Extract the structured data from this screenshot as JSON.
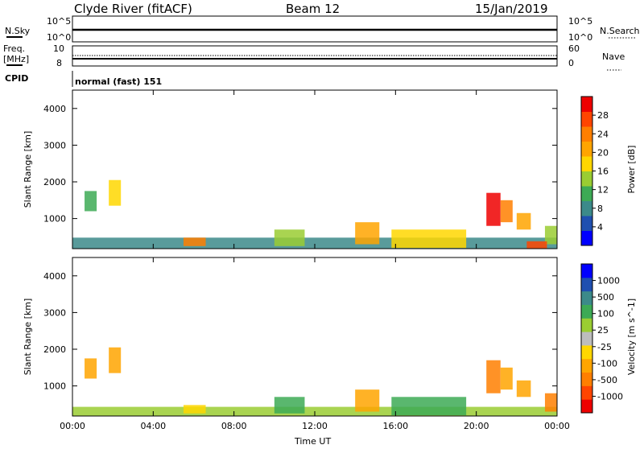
{
  "header": {
    "station": "Clyde River (fitACF)",
    "beam": "Beam 12",
    "date": "15/Jan/2019"
  },
  "side_labels": {
    "nsky": "N.Sky",
    "nsearch": "N.Search",
    "freq_top": "Freq.",
    "freq_unit": "[MHz]",
    "nave": "Nave",
    "cpid": "CPID"
  },
  "strip_ticks": {
    "nsky_top": "10^5",
    "nsky_bottom": "10^0",
    "nsearch_top": "10^5",
    "nsearch_bottom": "10^0",
    "freq_top": "10",
    "freq_bottom": "8",
    "nave_top": "60",
    "nave_bottom": "0"
  },
  "cpid_text": "normal (fast) 151",
  "chart_data": [
    {
      "type": "heatmap",
      "quantity": "Power",
      "ylabel": "Slant Range [km]",
      "colorbar_label": "Power [dB]",
      "ylim": [
        180,
        4500
      ],
      "yticks": [
        "1000",
        "2000",
        "3000",
        "4000"
      ],
      "colorbar_ticks": [
        "4",
        "8",
        "12",
        "16",
        "20",
        "24",
        "28"
      ],
      "colors": [
        "#0000ff",
        "#1f4fb0",
        "#3c8a8a",
        "#3daa55",
        "#9acd32",
        "#ffd700",
        "#ffa500",
        "#ff7f00",
        "#ff4500",
        "#ee0000"
      ],
      "patches": [
        {
          "t": [
            0.6,
            1.2
          ],
          "r": [
            1200,
            1750
          ],
          "level": 3
        },
        {
          "t": [
            1.8,
            2.4
          ],
          "r": [
            1350,
            2050
          ],
          "level": 5
        },
        {
          "t": [
            0.0,
            24.0
          ],
          "r": [
            180,
            480
          ],
          "level": 2
        },
        {
          "t": [
            5.5,
            6.6
          ],
          "r": [
            250,
            480
          ],
          "level": 7
        },
        {
          "t": [
            10.0,
            11.5
          ],
          "r": [
            250,
            700
          ],
          "level": 4
        },
        {
          "t": [
            14.0,
            15.2
          ],
          "r": [
            300,
            900
          ],
          "level": 6
        },
        {
          "t": [
            15.8,
            19.5
          ],
          "r": [
            200,
            700
          ],
          "level": 5
        },
        {
          "t": [
            20.5,
            21.2
          ],
          "r": [
            800,
            1700
          ],
          "level": 9
        },
        {
          "t": [
            21.2,
            21.8
          ],
          "r": [
            900,
            1500
          ],
          "level": 7
        },
        {
          "t": [
            22.0,
            22.7
          ],
          "r": [
            700,
            1150
          ],
          "level": 6
        },
        {
          "t": [
            23.4,
            24.0
          ],
          "r": [
            300,
            800
          ],
          "level": 4
        },
        {
          "t": [
            22.5,
            23.5
          ],
          "r": [
            180,
            380
          ],
          "level": 8
        }
      ]
    },
    {
      "type": "heatmap",
      "quantity": "Velocity",
      "ylabel": "Slant Range [km]",
      "xlabel": "Time UT",
      "colorbar_label": "Velocity [m s^-1]",
      "ylim": [
        180,
        4500
      ],
      "yticks": [
        "1000",
        "2000",
        "3000",
        "4000"
      ],
      "xticks": [
        "00:00",
        "04:00",
        "08:00",
        "12:00",
        "16:00",
        "20:00",
        "00:00"
      ],
      "colorbar_ticks": [
        "-1000",
        "-500",
        "-100",
        "-25",
        "25",
        "100",
        "500",
        "1000"
      ],
      "colors": [
        "#ee0000",
        "#ff4500",
        "#ff7f00",
        "#ffa500",
        "#ffd700",
        "#bdbdbd",
        "#9acd32",
        "#3daa55",
        "#3c8a8a",
        "#1f4fb0",
        "#0000ff"
      ],
      "patches": [
        {
          "t": [
            0.6,
            1.2
          ],
          "r": [
            1200,
            1750
          ],
          "level": 3
        },
        {
          "t": [
            1.8,
            2.4
          ],
          "r": [
            1350,
            2050
          ],
          "level": 3
        },
        {
          "t": [
            0.0,
            24.0
          ],
          "r": [
            180,
            430
          ],
          "level": 6
        },
        {
          "t": [
            5.5,
            6.6
          ],
          "r": [
            250,
            480
          ],
          "level": 4
        },
        {
          "t": [
            10.0,
            11.5
          ],
          "r": [
            250,
            700
          ],
          "level": 7
        },
        {
          "t": [
            14.0,
            15.2
          ],
          "r": [
            300,
            900
          ],
          "level": 3
        },
        {
          "t": [
            15.8,
            19.5
          ],
          "r": [
            200,
            700
          ],
          "level": 7
        },
        {
          "t": [
            20.5,
            21.2
          ],
          "r": [
            800,
            1700
          ],
          "level": 2
        },
        {
          "t": [
            21.2,
            21.8
          ],
          "r": [
            900,
            1500
          ],
          "level": 3
        },
        {
          "t": [
            22.0,
            22.7
          ],
          "r": [
            700,
            1150
          ],
          "level": 3
        },
        {
          "t": [
            23.4,
            24.0
          ],
          "r": [
            300,
            800
          ],
          "level": 2
        }
      ]
    }
  ],
  "colors": {
    "strip_line": "#000000",
    "stripe": "#ffffff"
  }
}
